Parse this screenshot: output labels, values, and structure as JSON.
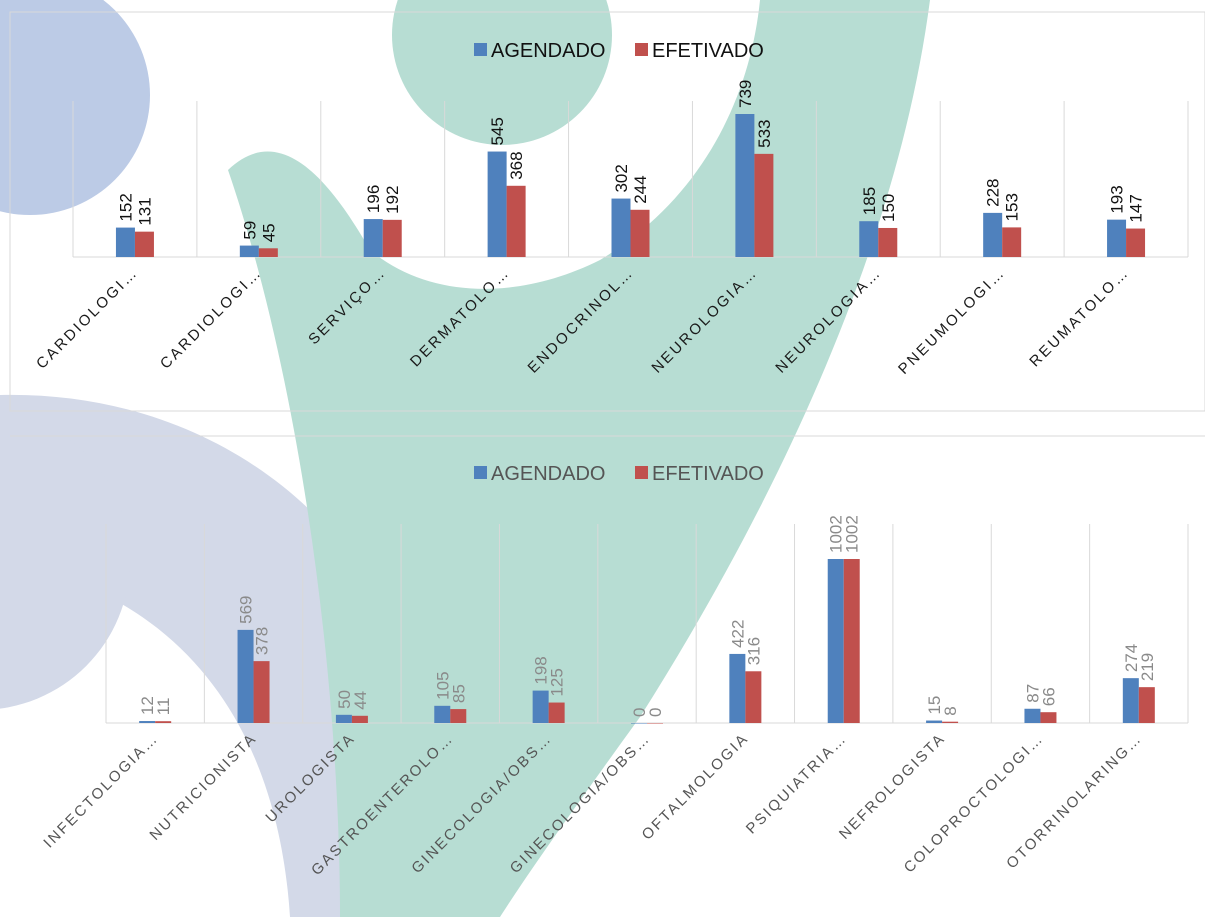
{
  "colors": {
    "agendado": "#4f81bd",
    "efetivado": "#c0504d",
    "watermark_blue": "#b8c7e4",
    "watermark_teal": "#b7ddd2",
    "watermark_gray": "#d4d8e6",
    "grid": "#d9d9d9"
  },
  "chart_data": [
    {
      "type": "bar",
      "legend_position": "top",
      "grid": true,
      "categories": [
        "CARDIOLOGI…",
        "CARDIOLOGI…",
        "SERVIÇO…",
        "DERMATOLO…",
        "ENDOCRINOL…",
        "NEUROLOGIA…",
        "NEUROLOGIA…",
        "PNEUMOLOGI…",
        "REUMATOLO…"
      ],
      "series": [
        {
          "name": "AGENDADO",
          "values": [
            152,
            59,
            196,
            545,
            302,
            739,
            185,
            228,
            193
          ]
        },
        {
          "name": "EFETIVADO",
          "values": [
            131,
            45,
            192,
            368,
            244,
            533,
            150,
            153,
            147
          ]
        }
      ],
      "ylim": [
        0,
        739
      ]
    },
    {
      "type": "bar",
      "legend_position": "top",
      "grid": true,
      "categories": [
        "INFECTOLOGIA…",
        "NUTRICIONISTA",
        "UROLOGISTA",
        "GASTROENTEROLO…",
        "GINECOLOGIA/OBS…",
        "GINECOLOGIA/OBS…",
        "OFTALMOLOGIA",
        "PSIQUIATRIA…",
        "NEFROLOGISTA",
        "COLOPROCTOLOGI…",
        "OTORRINOLARING…"
      ],
      "series": [
        {
          "name": "AGENDADO",
          "values": [
            12,
            569,
            50,
            105,
            198,
            0,
            422,
            1002,
            15,
            87,
            274
          ]
        },
        {
          "name": "EFETIVADO",
          "values": [
            11,
            378,
            44,
            85,
            125,
            0,
            316,
            1002,
            8,
            66,
            219
          ]
        }
      ],
      "ylim": [
        0,
        1002
      ]
    }
  ]
}
